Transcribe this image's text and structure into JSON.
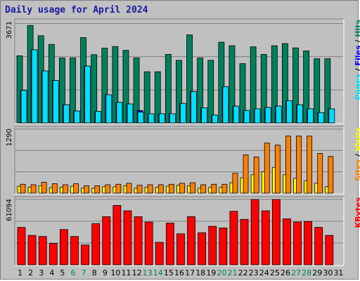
{
  "title": "Daily usage for April 2024",
  "colors": {
    "hits": "#00805c",
    "files": "#00e0ff",
    "pages": "#00e0ff",
    "sites": "#ff8000",
    "visits": "#ffff00",
    "kbytes": "#ff0000",
    "weekend_day_label": "#00805c",
    "weekday_day_label": "#000000"
  },
  "chart_data": [
    {
      "type": "bar",
      "panel": "hits-files-pages",
      "ymax_label": "3671",
      "ylim": [
        0,
        3671
      ],
      "legend": [
        {
          "text": "Pages",
          "color": "#00e0ff"
        },
        {
          "text": " / ",
          "color": "#000000"
        },
        {
          "text": "Files",
          "color": "#0000ff"
        },
        {
          "text": " / ",
          "color": "#000000"
        },
        {
          "text": "Hits",
          "color": "#00805c"
        }
      ],
      "categories": [
        "1",
        "2",
        "3",
        "4",
        "5",
        "6",
        "7",
        "8",
        "9",
        "10",
        "11",
        "12",
        "13",
        "14",
        "15",
        "16",
        "17",
        "18",
        "19",
        "20",
        "21",
        "22",
        "23",
        "24",
        "25",
        "26",
        "27",
        "28",
        "29",
        "30",
        "31"
      ],
      "series": [
        {
          "name": "Hits",
          "color": "#00805c",
          "values": [
            2480,
            3600,
            3220,
            2900,
            2400,
            2400,
            3150,
            2520,
            2760,
            2820,
            2680,
            2400,
            1890,
            1890,
            2530,
            2310,
            3250,
            2400,
            2310,
            2980,
            2850,
            2190,
            2810,
            2530,
            2850,
            2930,
            2770,
            2660,
            2370,
            2370,
            0
          ]
        },
        {
          "name": "Files",
          "color": "#0000ff",
          "values": [
            1200,
            2700,
            1920,
            1570,
            670,
            440,
            2100,
            430,
            1040,
            760,
            700,
            460,
            340,
            340,
            340,
            720,
            1160,
            560,
            290,
            1340,
            620,
            460,
            520,
            570,
            620,
            820,
            670,
            520,
            380,
            520,
            0
          ]
        },
        {
          "name": "Pages",
          "color": "#00e0ff",
          "values": [
            1200,
            2700,
            1920,
            1570,
            670,
            440,
            2100,
            430,
            1040,
            760,
            700,
            400,
            340,
            340,
            340,
            720,
            1160,
            560,
            290,
            1340,
            620,
            460,
            520,
            570,
            620,
            820,
            670,
            520,
            380,
            520,
            0
          ]
        }
      ]
    },
    {
      "type": "bar",
      "panel": "visits-sites",
      "ymax_label": "1290",
      "ylim": [
        0,
        1290
      ],
      "legend": [
        {
          "text": "Sites",
          "color": "#ff8000"
        },
        {
          "text": " / ",
          "color": "#000000"
        },
        {
          "text": "Visits",
          "color": "#ffff00"
        }
      ],
      "categories": [
        "1",
        "2",
        "3",
        "4",
        "5",
        "6",
        "7",
        "8",
        "9",
        "10",
        "11",
        "12",
        "13",
        "14",
        "15",
        "16",
        "17",
        "18",
        "19",
        "20",
        "21",
        "22",
        "23",
        "24",
        "25",
        "26",
        "27",
        "28",
        "29",
        "30",
        "31"
      ],
      "series": [
        {
          "name": "Visits",
          "color": "#ffff00",
          "values": [
            140,
            120,
            150,
            110,
            120,
            140,
            100,
            100,
            130,
            130,
            150,
            100,
            120,
            120,
            140,
            160,
            150,
            100,
            120,
            120,
            210,
            310,
            370,
            430,
            520,
            370,
            300,
            250,
            200,
            130,
            0
          ]
        },
        {
          "name": "Sites",
          "color": "#ff8000",
          "values": [
            180,
            170,
            220,
            190,
            170,
            190,
            150,
            150,
            170,
            180,
            200,
            160,
            170,
            170,
            180,
            200,
            210,
            170,
            180,
            180,
            400,
            770,
            730,
            1010,
            970,
            1150,
            1150,
            1150,
            800,
            740,
            0
          ]
        }
      ]
    },
    {
      "type": "bar",
      "panel": "kbytes",
      "ymax_label": "61094",
      "ylim": [
        0,
        61094
      ],
      "legend": [
        {
          "text": "KBytes",
          "color": "#ff0000"
        }
      ],
      "categories": [
        "1",
        "2",
        "3",
        "4",
        "5",
        "6",
        "7",
        "8",
        "9",
        "10",
        "11",
        "12",
        "13",
        "14",
        "15",
        "16",
        "17",
        "18",
        "19",
        "20",
        "21",
        "22",
        "23",
        "24",
        "25",
        "26",
        "27",
        "28",
        "29",
        "30",
        "31"
      ],
      "series": [
        {
          "name": "KBytes",
          "color": "#ff0000",
          "values": [
            35000,
            27500,
            26500,
            20000,
            33000,
            26500,
            18500,
            38500,
            45000,
            55500,
            50500,
            45000,
            40000,
            21000,
            39000,
            29000,
            45000,
            30000,
            36000,
            34500,
            50000,
            42500,
            61000,
            50500,
            61000,
            43000,
            40000,
            40500,
            35000,
            27500,
            0
          ]
        }
      ],
      "x_labels": [
        {
          "text": "1",
          "weekend": false
        },
        {
          "text": "2",
          "weekend": false
        },
        {
          "text": "3",
          "weekend": false
        },
        {
          "text": "4",
          "weekend": false
        },
        {
          "text": "5",
          "weekend": false
        },
        {
          "text": "6",
          "weekend": true
        },
        {
          "text": "7",
          "weekend": true
        },
        {
          "text": "8",
          "weekend": false
        },
        {
          "text": "9",
          "weekend": false
        },
        {
          "text": "10",
          "weekend": false
        },
        {
          "text": "11",
          "weekend": false
        },
        {
          "text": "12",
          "weekend": false
        },
        {
          "text": "13",
          "weekend": true
        },
        {
          "text": "14",
          "weekend": true
        },
        {
          "text": "15",
          "weekend": false
        },
        {
          "text": "16",
          "weekend": false
        },
        {
          "text": "17",
          "weekend": false
        },
        {
          "text": "18",
          "weekend": false
        },
        {
          "text": "19",
          "weekend": false
        },
        {
          "text": "20",
          "weekend": true
        },
        {
          "text": "21",
          "weekend": true
        },
        {
          "text": "22",
          "weekend": false
        },
        {
          "text": "23",
          "weekend": false
        },
        {
          "text": "24",
          "weekend": false
        },
        {
          "text": "25",
          "weekend": false
        },
        {
          "text": "26",
          "weekend": false
        },
        {
          "text": "27",
          "weekend": true
        },
        {
          "text": "28",
          "weekend": true
        },
        {
          "text": "29",
          "weekend": false
        },
        {
          "text": "30",
          "weekend": false
        },
        {
          "text": "31",
          "weekend": false
        }
      ]
    }
  ]
}
